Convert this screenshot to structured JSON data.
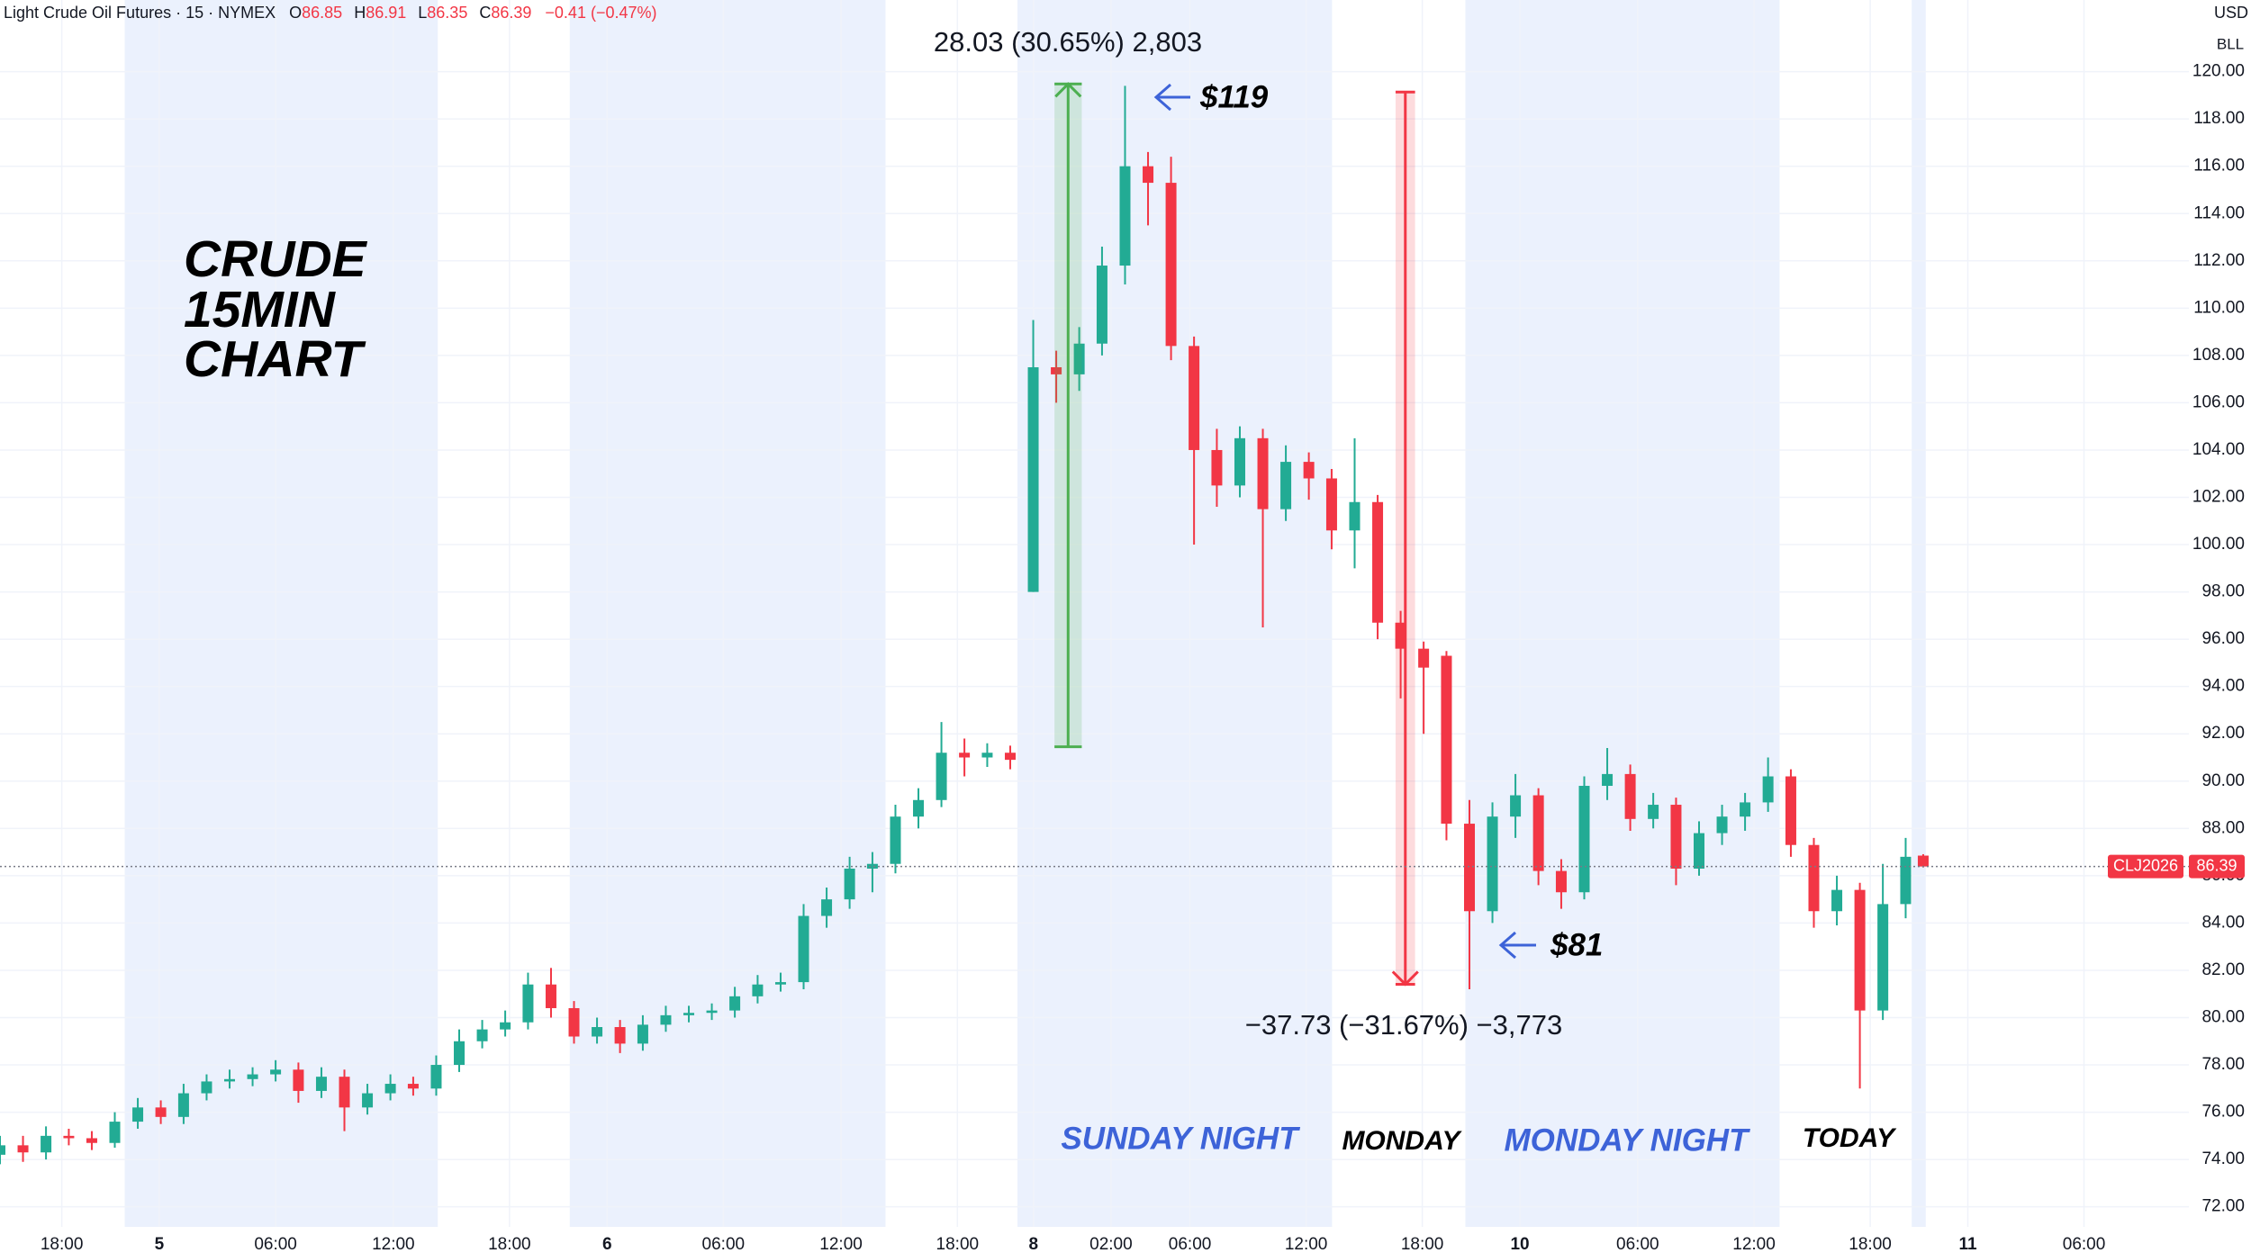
{
  "chart_data": {
    "type": "candlestick",
    "header": {
      "title": "Light Crude Oil Futures · 15 · NYMEX",
      "ohlc": [
        {
          "key": "O",
          "value": "86.85"
        },
        {
          "key": "H",
          "value": "86.91"
        },
        {
          "key": "L",
          "value": "86.35"
        },
        {
          "key": "C",
          "value": "86.39"
        }
      ],
      "change": "−0.41 (−0.47%)"
    },
    "currency": "USD",
    "unit": "BLL",
    "x": [
      0,
      1.18,
      2.36,
      3.53,
      4.71,
      5.89,
      7.07,
      8.25,
      9.42,
      10.6,
      11.78,
      12.96,
      14.14,
      15.31,
      16.49,
      17.67,
      18.85,
      20.03,
      21.2,
      22.38,
      23.56,
      24.74,
      25.92,
      27.09,
      28.27,
      29.45,
      30.63,
      31.81,
      32.98,
      34.16,
      35.34,
      36.52,
      37.7,
      38.87,
      40.05,
      41.23,
      42.41,
      43.59,
      44.76,
      45.94,
      47.12,
      48.3,
      49.48,
      50.65,
      51.83,
      53.01,
      54.19,
      55.37,
      56.54,
      57.72,
      58.9,
      60.08,
      61.26,
      62.43,
      63.61,
      64.79,
      65.97,
      67.15,
      68.32,
      69.5,
      70.68,
      71.86,
      73.04,
      74.21,
      75.39,
      76.57,
      77.75,
      78.93,
      80.1,
      81.28,
      82.46,
      83.64,
      84.82,
      85.99,
      87.17,
      88.35,
      89.53,
      90.71,
      91.88,
      93.06,
      94.24,
      95.42,
      96.6,
      97.77,
      98.67
    ],
    "open": [
      74.2,
      74.6,
      74.3,
      75.0,
      74.9,
      74.7,
      75.6,
      76.2,
      75.8,
      76.8,
      77.3,
      77.4,
      77.6,
      77.8,
      76.9,
      77.5,
      76.2,
      76.8,
      77.2,
      77.0,
      78.0,
      79.0,
      79.5,
      79.8,
      81.4,
      80.4,
      79.2,
      79.6,
      78.9,
      79.7,
      80.1,
      80.2,
      80.3,
      80.9,
      81.4,
      81.5,
      84.3,
      85.0,
      86.3,
      86.5,
      88.5,
      89.2,
      91.2,
      91.0,
      91.2,
      98.0,
      107.5,
      107.2,
      108.5,
      111.8,
      116.0,
      115.3,
      108.4,
      104.0,
      102.5,
      104.5,
      101.5,
      103.5,
      102.8,
      100.6,
      101.8,
      96.7,
      95.6,
      95.3,
      88.2,
      84.5,
      88.5,
      89.4,
      86.2,
      85.3,
      89.8,
      90.3,
      88.4,
      89.0,
      86.3,
      87.8,
      88.5,
      89.1,
      90.2,
      87.3,
      84.5,
      85.4,
      80.3,
      84.8,
      86.85
    ],
    "high": [
      75.0,
      75.0,
      75.4,
      75.3,
      75.2,
      76.0,
      76.6,
      76.5,
      77.2,
      77.6,
      77.8,
      77.9,
      78.2,
      78.1,
      77.9,
      77.8,
      77.2,
      77.6,
      77.5,
      78.4,
      79.5,
      79.9,
      80.3,
      81.9,
      82.1,
      80.7,
      80.0,
      79.9,
      80.1,
      80.5,
      80.5,
      80.6,
      81.3,
      81.8,
      81.9,
      84.8,
      85.5,
      86.8,
      87.0,
      89.0,
      89.7,
      92.5,
      91.8,
      91.6,
      91.5,
      109.5,
      108.2,
      109.2,
      112.6,
      119.4,
      116.6,
      116.4,
      108.8,
      104.9,
      105.0,
      104.9,
      104.2,
      103.9,
      103.2,
      104.5,
      102.1,
      97.2,
      95.9,
      95.5,
      89.2,
      89.1,
      90.3,
      89.7,
      86.7,
      90.2,
      91.4,
      90.7,
      89.5,
      89.3,
      88.3,
      89.0,
      89.5,
      91.0,
      90.5,
      87.6,
      86.0,
      85.7,
      86.5,
      87.6,
      86.91
    ],
    "low": [
      73.8,
      73.9,
      74.0,
      74.6,
      74.4,
      74.5,
      75.3,
      75.5,
      75.5,
      76.5,
      77.0,
      77.1,
      77.3,
      76.4,
      76.6,
      75.2,
      75.9,
      76.5,
      76.7,
      76.7,
      77.7,
      78.7,
      79.2,
      79.5,
      80.0,
      78.9,
      78.9,
      78.5,
      78.6,
      79.4,
      79.8,
      79.9,
      80.0,
      80.6,
      81.1,
      81.2,
      83.8,
      84.6,
      85.3,
      86.1,
      88.0,
      88.9,
      90.2,
      90.6,
      90.5,
      98.0,
      106.0,
      106.5,
      108.0,
      111.0,
      113.5,
      107.8,
      100.0,
      101.6,
      102.0,
      96.5,
      101.0,
      101.9,
      99.8,
      99.0,
      96.0,
      93.5,
      92.0,
      87.5,
      81.2,
      84.0,
      87.6,
      85.6,
      84.6,
      85.0,
      89.2,
      87.9,
      88.0,
      85.6,
      86.0,
      87.3,
      87.9,
      88.7,
      86.8,
      83.8,
      83.9,
      77.0,
      79.9,
      84.2,
      86.35
    ],
    "close": [
      74.6,
      74.3,
      75.0,
      74.9,
      74.7,
      75.6,
      76.2,
      75.8,
      76.8,
      77.3,
      77.4,
      77.6,
      77.8,
      76.9,
      77.5,
      76.2,
      76.8,
      77.2,
      77.0,
      78.0,
      79.0,
      79.5,
      79.8,
      81.4,
      80.4,
      79.2,
      79.6,
      78.9,
      79.7,
      80.1,
      80.2,
      80.3,
      80.9,
      81.4,
      81.5,
      84.3,
      85.0,
      86.3,
      86.5,
      88.5,
      89.2,
      91.2,
      91.0,
      91.2,
      90.9,
      107.5,
      107.2,
      108.5,
      111.8,
      116.0,
      115.3,
      108.4,
      104.0,
      102.5,
      104.5,
      101.5,
      103.5,
      102.8,
      100.6,
      101.8,
      96.7,
      95.6,
      94.8,
      88.2,
      84.5,
      88.5,
      89.4,
      86.2,
      85.3,
      89.8,
      90.3,
      88.4,
      89.0,
      86.3,
      87.8,
      88.5,
      89.1,
      90.2,
      87.3,
      84.5,
      85.4,
      80.3,
      84.8,
      86.8,
      86.39
    ],
    "colors": {
      "up": "#22ab94",
      "down": "#f23645"
    },
    "xlim": [
      0,
      112.3
    ],
    "xticks": [
      {
        "value": 3.17,
        "label": "18:00"
      },
      {
        "value": 8.17,
        "label": "5"
      },
      {
        "value": 14.14,
        "label": "06:00"
      },
      {
        "value": 20.18,
        "label": "12:00"
      },
      {
        "value": 26.14,
        "label": "18:00"
      },
      {
        "value": 31.15,
        "label": "6"
      },
      {
        "value": 37.11,
        "label": "06:00"
      },
      {
        "value": 43.15,
        "label": "12:00"
      },
      {
        "value": 49.12,
        "label": "18:00"
      },
      {
        "value": 53.02,
        "label": "8"
      },
      {
        "value": 57.0,
        "label": "02:00"
      },
      {
        "value": 61.05,
        "label": "06:00"
      },
      {
        "value": 67.01,
        "label": "12:00"
      },
      {
        "value": 72.97,
        "label": "18:00"
      },
      {
        "value": 77.98,
        "label": "10"
      },
      {
        "value": 84.02,
        "label": "06:00"
      },
      {
        "value": 89.99,
        "label": "12:00"
      },
      {
        "value": 95.95,
        "label": "18:00"
      },
      {
        "value": 100.96,
        "label": "11"
      },
      {
        "value": 106.92,
        "label": "06:00"
      }
    ],
    "ylim": [
      71.15,
      123.03
    ],
    "yticks": [
      {
        "value": 72,
        "label": "72.00"
      },
      {
        "value": 74,
        "label": "74.00"
      },
      {
        "value": 76,
        "label": "76.00"
      },
      {
        "value": 78,
        "label": "78.00"
      },
      {
        "value": 80,
        "label": "80.00"
      },
      {
        "value": 82,
        "label": "82.00"
      },
      {
        "value": 84,
        "label": "84.00"
      },
      {
        "value": 86,
        "label": "86.00"
      },
      {
        "value": 88,
        "label": "88.00"
      },
      {
        "value": 90,
        "label": "90.00"
      },
      {
        "value": 92,
        "label": "92.00"
      },
      {
        "value": 94,
        "label": "94.00"
      },
      {
        "value": 96,
        "label": "96.00"
      },
      {
        "value": 98,
        "label": "98.00"
      },
      {
        "value": 100,
        "label": "100.00"
      },
      {
        "value": 102,
        "label": "102.00"
      },
      {
        "value": 104,
        "label": "104.00"
      },
      {
        "value": 106,
        "label": "106.00"
      },
      {
        "value": 108,
        "label": "108.00"
      },
      {
        "value": 110,
        "label": "110.00"
      },
      {
        "value": 112,
        "label": "112.00"
      },
      {
        "value": 114,
        "label": "114.00"
      },
      {
        "value": 116,
        "label": "116.00"
      },
      {
        "value": 118,
        "label": "118.00"
      },
      {
        "value": 120,
        "label": "120.00"
      }
    ],
    "grid": true,
    "sessions": [
      [
        6.4,
        22.46
      ],
      [
        29.23,
        45.43
      ],
      [
        52.2,
        68.34
      ],
      [
        75.18,
        91.3
      ],
      [
        98.08,
        98.8
      ]
    ],
    "session_color": "#ebf1fd",
    "measures": [
      {
        "label": "28.03 (30.65%) 2,803",
        "from": 91.45,
        "to": 119.48,
        "x": [
          54.1,
          55.5
        ],
        "color": "#4caf50"
      },
      {
        "label": "−37.73 (−31.67%) −3,773",
        "from": 119.14,
        "to": 81.41,
        "x": [
          71.6,
          72.6
        ],
        "color": "#f23645"
      }
    ],
    "last": {
      "symbol": "CLJ2026",
      "value": 86.39,
      "label": "86.39"
    },
    "notes": [
      {
        "text": "CRUDE",
        "color": "#000000"
      },
      {
        "text": "15MIN",
        "color": "#000000"
      },
      {
        "text": "CHART",
        "color": "#000000"
      },
      {
        "text": "$119",
        "color": "#000000"
      },
      {
        "text": "$81",
        "color": "#000000"
      },
      {
        "text": "SUNDAY NIGHT",
        "color": "#3d63d8"
      },
      {
        "text": "MONDAY",
        "color": "#000000"
      },
      {
        "text": "MONDAY NIGHT",
        "color": "#3d63d8"
      },
      {
        "text": "TODAY",
        "color": "#000000"
      }
    ]
  }
}
